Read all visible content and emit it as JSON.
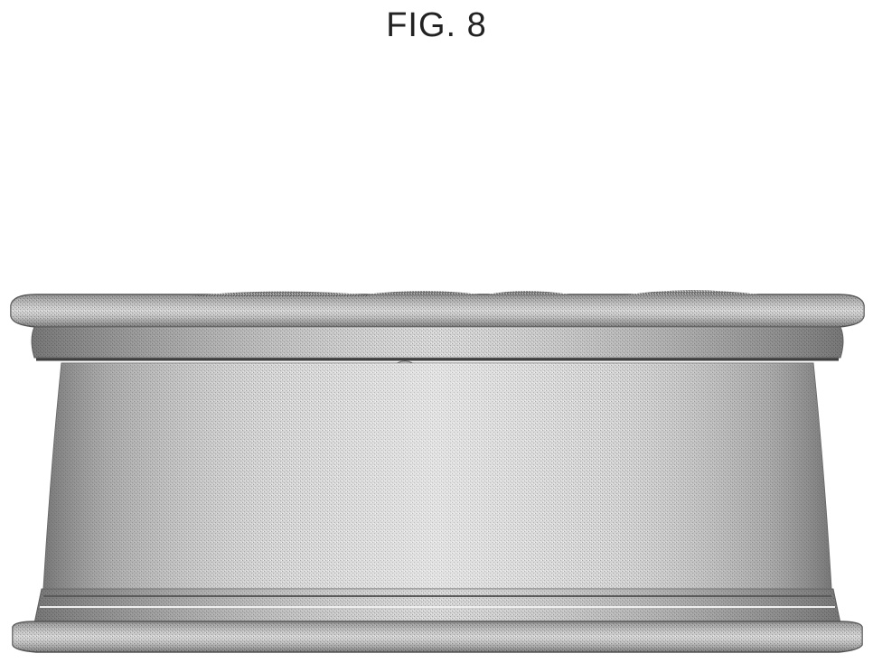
{
  "figure": {
    "title": "FIG. 8"
  },
  "drawing": {
    "subject": "wheel-rim-side-view",
    "rendering": "stippled-grayscale",
    "colors": {
      "base_shade": "#8a8a8a",
      "highlight": "#e6e6e6",
      "dark_edge": "#555555",
      "background": "#ffffff"
    }
  }
}
